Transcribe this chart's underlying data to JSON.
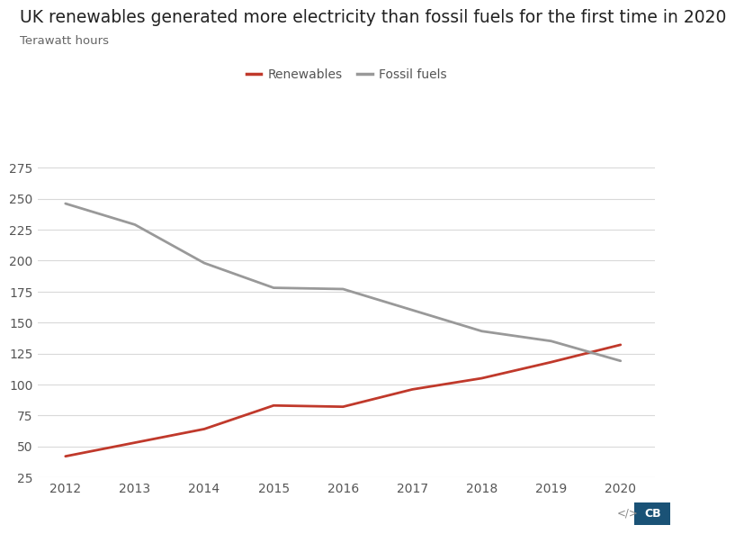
{
  "title": "UK renewables generated more electricity than fossil fuels for the first time in 2020",
  "subtitle": "Terawatt hours",
  "years": [
    2012,
    2013,
    2014,
    2015,
    2016,
    2017,
    2018,
    2019,
    2020
  ],
  "renewables": [
    42,
    53,
    64,
    83,
    82,
    96,
    105,
    118,
    132
  ],
  "fossil_fuels": [
    246,
    229,
    198,
    178,
    177,
    160,
    143,
    135,
    119
  ],
  "renewables_color": "#c0392b",
  "fossil_fuels_color": "#999999",
  "background_color": "#ffffff",
  "grid_color": "#d9d9d9",
  "title_fontsize": 13.5,
  "subtitle_fontsize": 9.5,
  "legend_fontsize": 10,
  "tick_fontsize": 10,
  "ylim": [
    25,
    290
  ],
  "yticks": [
    25,
    50,
    75,
    100,
    125,
    150,
    175,
    200,
    225,
    250,
    275
  ],
  "line_width": 2.0,
  "cb_color": "#1a5276",
  "icon_color": "#555555"
}
